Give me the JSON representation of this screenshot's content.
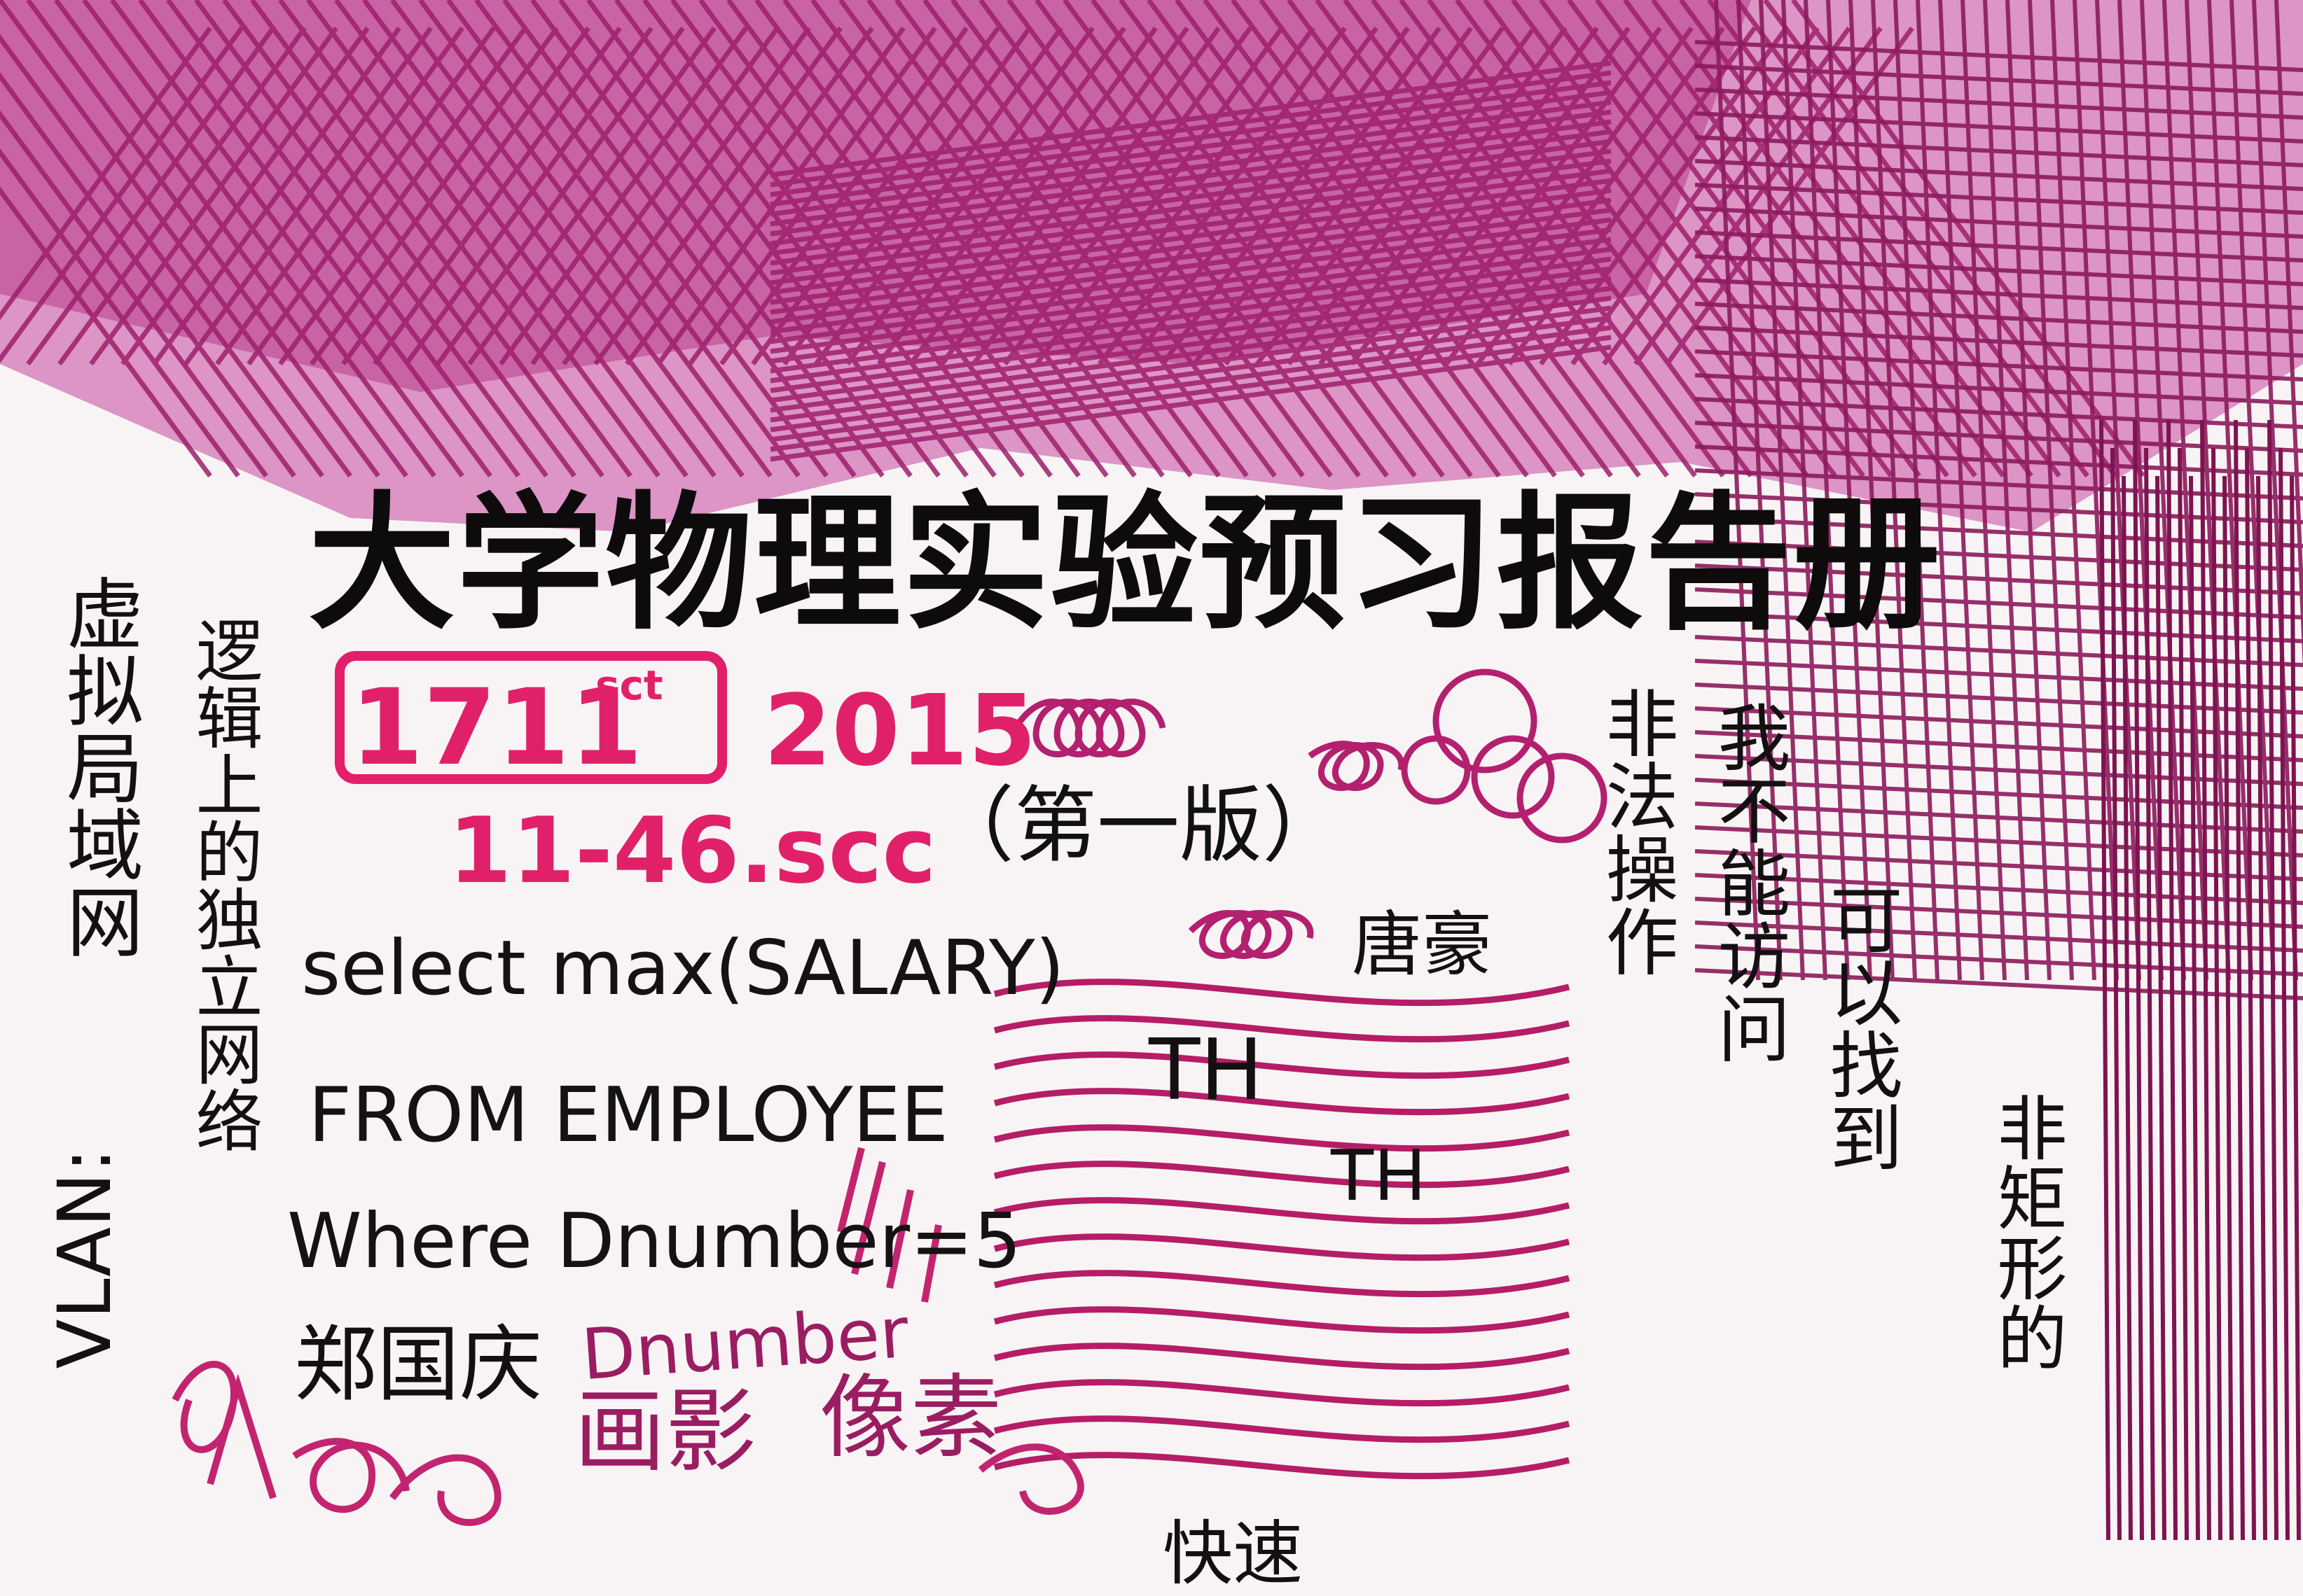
{
  "document": {
    "title": "大学物理实验预习报告册",
    "edition": "（第一版）"
  },
  "handwriting": {
    "boxed_number": "1711",
    "boxed_suffix": "sct",
    "year": "2015",
    "second_line": "11-46.scc",
    "sql": {
      "line1": "select   max(SALARY)",
      "line2": "FROM   EMPLOYEE",
      "line3": "Where   Dnumber=5"
    },
    "name": "郑国庆",
    "dnumber_label": "Dnumber",
    "vlan_label": "VLAN:",
    "vlan_text": "虚拟局域网",
    "vertical_texts": [
      "逻辑上的独立网络",
      "非法操作",
      "我不能访问",
      "可以找到",
      "非矩形的"
    ],
    "th_1": "TH",
    "th_2": "TH",
    "chinese_bits": [
      "唐豪",
      "画影",
      "像素",
      "快速"
    ]
  },
  "colors": {
    "ink_magenta": "#b0287c",
    "ink_pink": "#e0216a",
    "ink_black": "#141012",
    "paper": "#f8f4f5"
  }
}
